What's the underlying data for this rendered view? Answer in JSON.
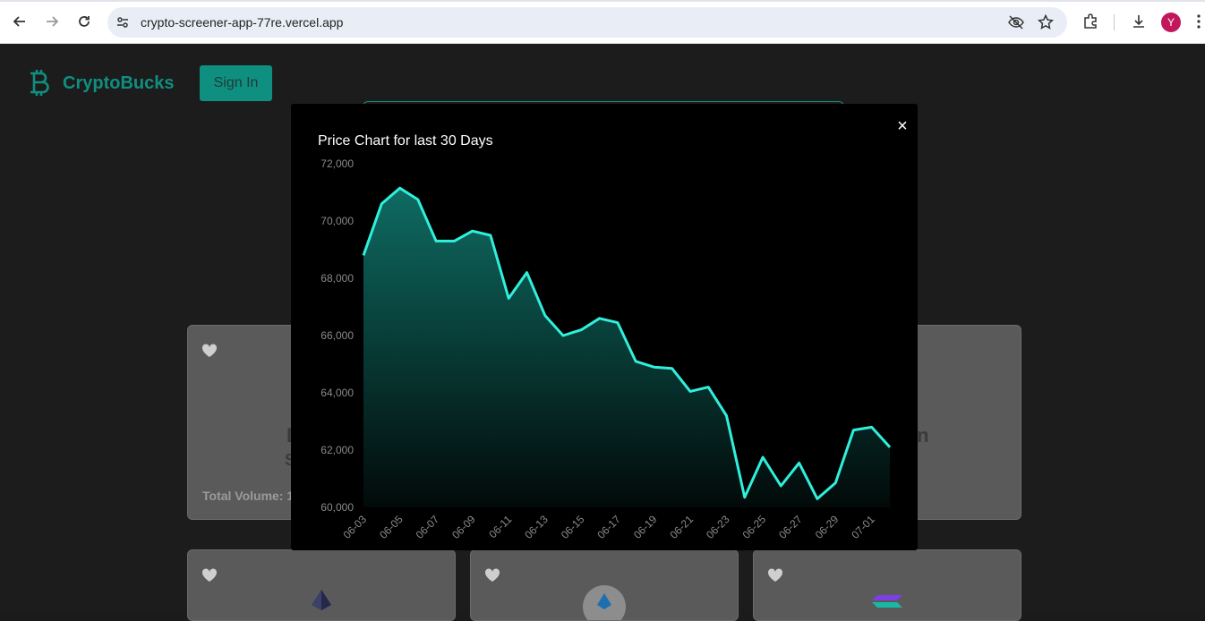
{
  "browser": {
    "url": "crypto-screener-app-77re.vercel.app",
    "profile_initial": "Y"
  },
  "app": {
    "brand": "CryptoBucks",
    "sign_in_label": "Sign In"
  },
  "cards": {
    "partial_letter_left": "B",
    "partial_letter_left2": "S",
    "partial_text_right": "in",
    "total_volume_label": "Total Volume: 1"
  },
  "modal": {
    "title": "Price Chart for last 30 Days",
    "close_label": "×"
  },
  "chart_data": {
    "type": "area",
    "title": "Price Chart for last 30 Days",
    "ylim": [
      60000,
      72000
    ],
    "y_ticks": [
      "72,000",
      "70,000",
      "68,000",
      "66,000",
      "64,000",
      "62,000",
      "60,000"
    ],
    "y_tick_values": [
      72000,
      70000,
      68000,
      66000,
      64000,
      62000,
      60000
    ],
    "x_tick_labels": [
      "06-03",
      "06-05",
      "06-07",
      "06-09",
      "06-11",
      "06-13",
      "06-15",
      "06-17",
      "06-19",
      "06-21",
      "06-23",
      "06-25",
      "06-27",
      "06-29",
      "07-01"
    ],
    "series": [
      {
        "values": [
          68800,
          70600,
          71150,
          70750,
          69300,
          69300,
          69650,
          69500,
          67300,
          68200,
          66700,
          66000,
          66200,
          66600,
          66450,
          65100,
          64900,
          64850,
          64050,
          64200,
          63200,
          60350,
          61750,
          60750,
          61550,
          60300,
          60850,
          62700,
          62800,
          62100
        ]
      }
    ],
    "line_color": "#2ff0dc",
    "fill_top_color": "#0e6b62",
    "grid": false
  }
}
